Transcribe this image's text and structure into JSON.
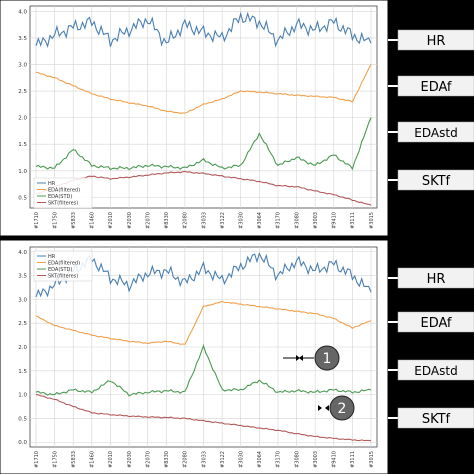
{
  "colors": {
    "hr": "#4a7fb0",
    "eda": "#f0a04b",
    "eda_std": "#4c9a52",
    "skt": "#b45a5a",
    "grid": "#d4d4d4",
    "side_label_bg": "#f2f2f2",
    "marker_circle": "#666666"
  },
  "side_labels": [
    "HR",
    "EDAf",
    "EDAstd",
    "SKTf"
  ],
  "markers": [
    "1",
    "2"
  ],
  "chart_data": [
    {
      "type": "line",
      "title": "",
      "xlabel": "",
      "ylabel": "",
      "ylim": [
        0.3,
        4.1
      ],
      "yticks": [
        "0.5",
        "1.0",
        "1.5",
        "2.0",
        "2.5",
        "3.0",
        "3.5",
        "4.0"
      ],
      "yticks_values": [
        0.5,
        1.0,
        1.5,
        2.0,
        2.5,
        3.0,
        3.5,
        4.0
      ],
      "grid": true,
      "legend_placement": "lower-left",
      "xticks": [
        "#1710",
        "#1750",
        "#5833",
        "#1460",
        "#2010",
        "#2030",
        "#2070",
        "#8330",
        "#2080",
        "#3033",
        "#3122",
        "#3030",
        "#3064",
        "#3170",
        "#3080",
        "#3003",
        "#9410",
        "#3111",
        "#3015"
      ],
      "x": [
        0,
        1,
        2,
        3,
        4,
        5,
        6,
        7,
        8,
        9,
        10,
        11,
        12,
        13,
        14,
        15,
        16,
        17,
        18
      ],
      "series": [
        {
          "name": "HR",
          "key": "hr",
          "values": [
            3.35,
            3.55,
            3.7,
            3.8,
            3.45,
            3.65,
            3.85,
            3.4,
            3.75,
            3.6,
            3.5,
            3.9,
            3.8,
            3.45,
            3.75,
            3.65,
            3.8,
            3.55,
            3.4
          ]
        },
        {
          "name": "EDA(filtered)",
          "key": "eda",
          "values": [
            2.85,
            2.75,
            2.6,
            2.45,
            2.35,
            2.28,
            2.22,
            2.12,
            2.08,
            2.25,
            2.35,
            2.5,
            2.48,
            2.45,
            2.42,
            2.4,
            2.38,
            2.3,
            3.0
          ]
        },
        {
          "name": "EDA(STD)",
          "key": "eda_std",
          "values": [
            1.08,
            1.05,
            1.4,
            1.1,
            1.05,
            1.05,
            1.1,
            1.08,
            1.05,
            1.2,
            1.05,
            1.1,
            1.7,
            1.1,
            1.25,
            1.1,
            1.3,
            1.05,
            2.0
          ]
        },
        {
          "name": "SKT(filteres)",
          "key": "skt",
          "values": [
            0.55,
            0.7,
            0.82,
            0.9,
            0.85,
            0.88,
            0.92,
            0.96,
            0.98,
            0.95,
            0.9,
            0.85,
            0.8,
            0.72,
            0.7,
            0.62,
            0.55,
            0.45,
            0.35
          ]
        }
      ]
    },
    {
      "type": "line",
      "title": "",
      "xlabel": "",
      "ylabel": "",
      "ylim": [
        -0.1,
        4.1
      ],
      "yticks": [
        "0.0",
        "0.5",
        "1.0",
        "1.5",
        "2.0",
        "2.5",
        "3.0",
        "3.5",
        "4.0"
      ],
      "yticks_values": [
        0.0,
        0.5,
        1.0,
        1.5,
        2.0,
        2.5,
        3.0,
        3.5,
        4.0
      ],
      "grid": true,
      "legend_placement": "top-left",
      "xticks": [
        "#1710",
        "#1750",
        "#5833",
        "#1460",
        "#2010",
        "#2030",
        "#2070",
        "#8330",
        "#2080",
        "#3033",
        "#3122",
        "#3030",
        "#3064",
        "#3170",
        "#3080",
        "#3003",
        "#9410",
        "#3111",
        "#3015"
      ],
      "x": [
        0,
        1,
        2,
        3,
        4,
        5,
        6,
        7,
        8,
        9,
        10,
        11,
        12,
        13,
        14,
        15,
        16,
        17,
        18
      ],
      "series": [
        {
          "name": "HR",
          "key": "hr",
          "values": [
            3.05,
            3.3,
            3.6,
            3.85,
            3.45,
            3.3,
            3.55,
            3.6,
            3.35,
            3.65,
            3.4,
            3.7,
            3.95,
            3.5,
            3.8,
            3.6,
            3.75,
            3.5,
            3.15
          ]
        },
        {
          "name": "EDA(filtered)",
          "key": "eda",
          "values": [
            2.65,
            2.45,
            2.35,
            2.25,
            2.18,
            2.12,
            2.08,
            2.12,
            2.05,
            2.85,
            2.95,
            2.9,
            2.85,
            2.8,
            2.75,
            2.7,
            2.6,
            2.4,
            2.55
          ]
        },
        {
          "name": "EDA(STD)",
          "key": "eda_std",
          "values": [
            1.05,
            1.0,
            1.1,
            1.05,
            1.3,
            1.0,
            1.05,
            1.08,
            1.05,
            2.0,
            1.1,
            1.1,
            1.3,
            1.05,
            1.08,
            1.05,
            1.1,
            1.05,
            1.1
          ]
        },
        {
          "name": "SKT(filteres)",
          "key": "skt",
          "values": [
            1.0,
            0.9,
            0.75,
            0.62,
            0.58,
            0.55,
            0.53,
            0.52,
            0.5,
            0.45,
            0.4,
            0.35,
            0.3,
            0.25,
            0.18,
            0.12,
            0.08,
            0.05,
            0.03
          ]
        }
      ]
    }
  ]
}
